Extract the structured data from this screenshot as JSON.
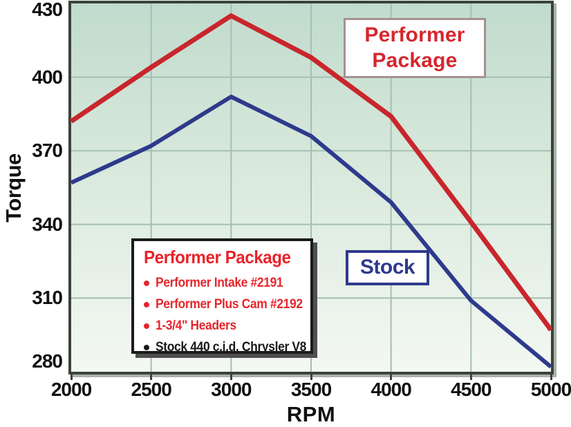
{
  "chart_data": {
    "type": "line",
    "title": "",
    "xlabel": "RPM",
    "ylabel": "Torque",
    "x": [
      2000,
      2500,
      3000,
      3500,
      4000,
      4500,
      5000
    ],
    "series": [
      {
        "name": "Performer Package",
        "color": "#c8262c",
        "stroke_width": 7,
        "values": [
          382,
          404,
          425,
          408,
          384,
          341,
          297
        ]
      },
      {
        "name": "Stock",
        "color": "#2e3a8c",
        "stroke_width": 6,
        "values": [
          357,
          372,
          392,
          376,
          349,
          309,
          282
        ]
      }
    ],
    "xlim": [
      2000,
      5000
    ],
    "ylim": [
      280,
      430
    ],
    "xticks": [
      2000,
      2500,
      3000,
      3500,
      4000,
      4500,
      5000
    ],
    "yticks": [
      430,
      400,
      370,
      340,
      310,
      280
    ],
    "grid": true,
    "legend_position": "inside lower-left"
  },
  "annotations": {
    "performer_box": {
      "line1": "Performer",
      "line2": "Package",
      "text_color": "#d4272e",
      "border_color": "#a39292"
    },
    "stock_box": {
      "label": "Stock",
      "color": "#2e3a8c"
    }
  },
  "legend": {
    "title": "Performer Package",
    "title_color": "#e8232b",
    "border_color": "#1b1b1b",
    "shadow_color": "#4f4f4f",
    "items": [
      {
        "bullet": "bullet-dot",
        "label": "Performer Intake #2191",
        "color": "#e5272e"
      },
      {
        "bullet": "bullet-dot",
        "label": "Performer Plus Cam #2192",
        "color": "#e5272e"
      },
      {
        "bullet": "bullet-dot",
        "label": "1-3/4\" Headers",
        "color": "#e5272e"
      },
      {
        "bullet": "bullet-dot",
        "label": "Stock 440 c.i.d. Chrysler V8",
        "color": "#1a1a1a"
      }
    ]
  },
  "colors": {
    "plot_bg_top": "#c0dbcd",
    "plot_bg_mid": "#d9e9dc",
    "plot_bg_bottom": "#f3f8f2",
    "grid": "#a5bfb2",
    "plot_border": "#3b423c",
    "plot_shadow": "#a9b3a8",
    "axis_text": "#101010",
    "tick_mark": "#3b423c"
  }
}
